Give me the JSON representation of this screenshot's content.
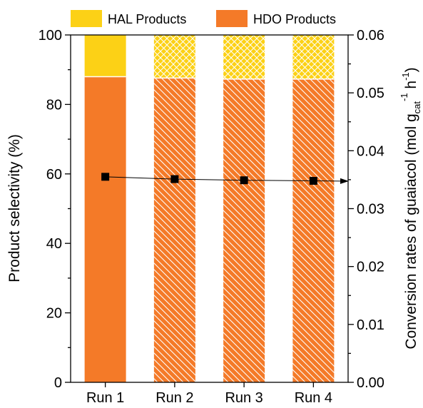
{
  "chart_data": {
    "type": "bar",
    "subtype": "stacked-bar-with-line",
    "categories": [
      "Run 1",
      "Run 2",
      "Run 3",
      "Run 4"
    ],
    "series": [
      {
        "name": "HDO Products",
        "values": [
          88.0,
          87.6,
          87.3,
          87.3
        ],
        "color": "#F47A28",
        "hatch": [
          false,
          true,
          true,
          true
        ]
      },
      {
        "name": "HAL Products",
        "values": [
          12.0,
          12.4,
          12.7,
          12.7
        ],
        "color": "#FCD116",
        "hatch": [
          false,
          true,
          true,
          true
        ]
      }
    ],
    "line_series": {
      "axis": "right",
      "values": [
        0.0355,
        0.0351,
        0.0349,
        0.0348
      ],
      "color": "#000000",
      "marker": "square"
    },
    "ylabel": "Product selectivity (%)",
    "ylabel_right": {
      "main": "Conversion rates of guaiacol (mol g",
      "sub": "cat",
      "sup1": "-1",
      "mid": " h",
      "sup2": "-1",
      "end": ")"
    },
    "ylim": [
      0,
      100
    ],
    "ylim_right": [
      0,
      0.06
    ],
    "yticks": [
      "0",
      "20",
      "40",
      "60",
      "80",
      "100"
    ],
    "yticks_right": [
      "0.00",
      "0.01",
      "0.02",
      "0.03",
      "0.04",
      "0.05",
      "0.06"
    ],
    "legend": {
      "position": "top",
      "entries": [
        "HAL Products",
        "HDO Products"
      ]
    },
    "grid": false
  }
}
